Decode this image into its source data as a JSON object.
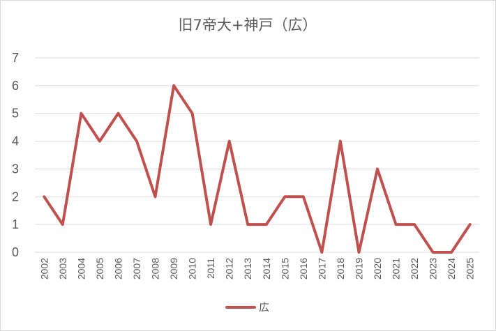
{
  "chart_data": {
    "type": "line",
    "title": "旧7帝大+神戸（広）",
    "x": [
      "2002",
      "2003",
      "2004",
      "2005",
      "2006",
      "2007",
      "2008",
      "2009",
      "2010",
      "2011",
      "2012",
      "2013",
      "2014",
      "2015",
      "2016",
      "2017",
      "2018",
      "2019",
      "2020",
      "2021",
      "2022",
      "2023",
      "2024",
      "2025"
    ],
    "series": [
      {
        "name": "広",
        "values": [
          2,
          1,
          5,
          4,
          5,
          4,
          2,
          6,
          5,
          1,
          4,
          1,
          1,
          2,
          2,
          0,
          4,
          0,
          3,
          1,
          1,
          0,
          0,
          1
        ]
      }
    ],
    "ylim": [
      0,
      7
    ],
    "yticks": [
      "0",
      "1",
      "2",
      "3",
      "4",
      "5",
      "6",
      "7"
    ],
    "grid": true,
    "legend_position": "bottom",
    "colors": {
      "line": "#c0504d",
      "grid": "#d9d9d9",
      "text": "#595959"
    }
  }
}
